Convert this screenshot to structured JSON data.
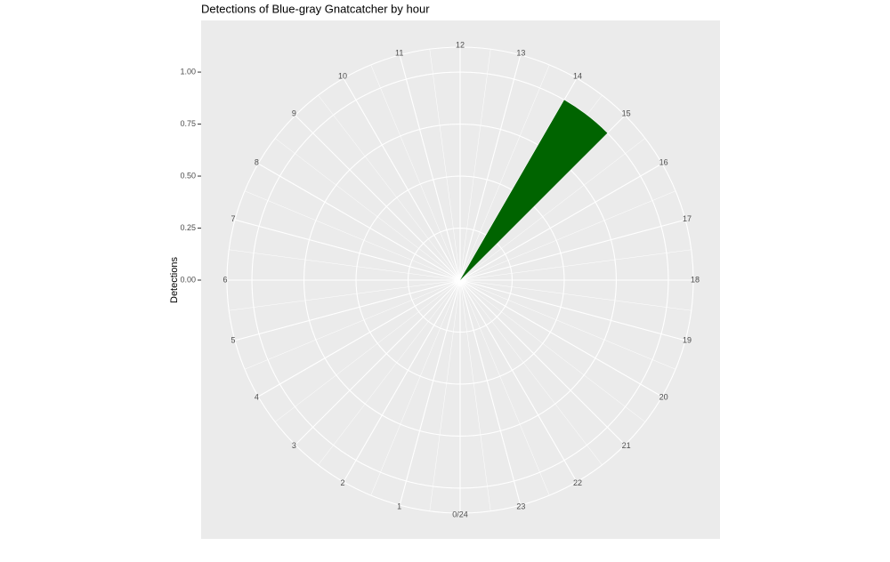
{
  "chart_data": {
    "type": "polar-bar",
    "title": "Detections of Blue-gray Gnatcatcher by hour",
    "y_label": "Detections",
    "categories": [
      "0/24",
      "1",
      "2",
      "3",
      "4",
      "5",
      "6",
      "7",
      "8",
      "9",
      "10",
      "11",
      "12",
      "13",
      "14",
      "15",
      "16",
      "17",
      "18",
      "19",
      "20",
      "21",
      "22",
      "23"
    ],
    "values": [
      0,
      0,
      0,
      0,
      0,
      0,
      0,
      0,
      0,
      0,
      0,
      0,
      0,
      0,
      1,
      0,
      0,
      0,
      0,
      0,
      0,
      0,
      0,
      0
    ],
    "color": "#006400",
    "xlim": [
      0,
      24
    ],
    "ylim": [
      0,
      1.12
    ],
    "yticks": [
      {
        "value": 0,
        "label": "0.00"
      },
      {
        "value": 0.25,
        "label": "0.25"
      },
      {
        "value": 0.5,
        "label": "0.50"
      },
      {
        "value": 0.75,
        "label": "0.75"
      },
      {
        "value": 1,
        "label": "1.00"
      }
    ],
    "grid": true
  }
}
